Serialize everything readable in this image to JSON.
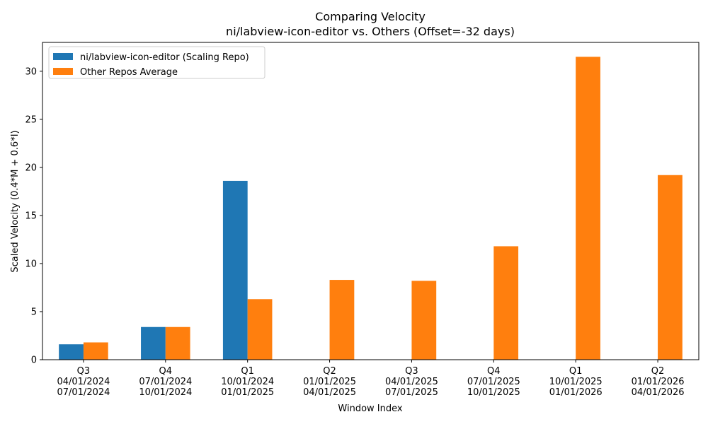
{
  "chart_data": {
    "type": "bar",
    "title": "Comparing Velocity",
    "subtitle": "ni/labview-icon-editor vs. Others (Offset=-32 days)",
    "xlabel": "Window Index",
    "ylabel": "Scaled Velocity (0.4*M + 0.6*I)",
    "ylim": [
      0,
      33
    ],
    "yticks": [
      0,
      5,
      10,
      15,
      20,
      25,
      30
    ],
    "categories": [
      [
        "Q3",
        "04/01/2024",
        "07/01/2024"
      ],
      [
        "Q4",
        "07/01/2024",
        "10/01/2024"
      ],
      [
        "Q1",
        "10/01/2024",
        "01/01/2025"
      ],
      [
        "Q2",
        "01/01/2025",
        "04/01/2025"
      ],
      [
        "Q3",
        "04/01/2025",
        "07/01/2025"
      ],
      [
        "Q4",
        "07/01/2025",
        "10/01/2025"
      ],
      [
        "Q1",
        "10/01/2025",
        "01/01/2026"
      ],
      [
        "Q2",
        "01/01/2026",
        "04/01/2026"
      ]
    ],
    "series": [
      {
        "name": "ni/labview-icon-editor (Scaling Repo)",
        "color": "#1f77b4",
        "values": [
          1.6,
          3.4,
          18.6,
          0,
          0,
          0,
          0,
          0
        ]
      },
      {
        "name": "Other Repos Average",
        "color": "#ff7f0e",
        "values": [
          1.8,
          3.4,
          6.3,
          8.3,
          8.2,
          11.8,
          31.5,
          19.2
        ]
      }
    ],
    "legend": "top-left",
    "grid": false
  }
}
